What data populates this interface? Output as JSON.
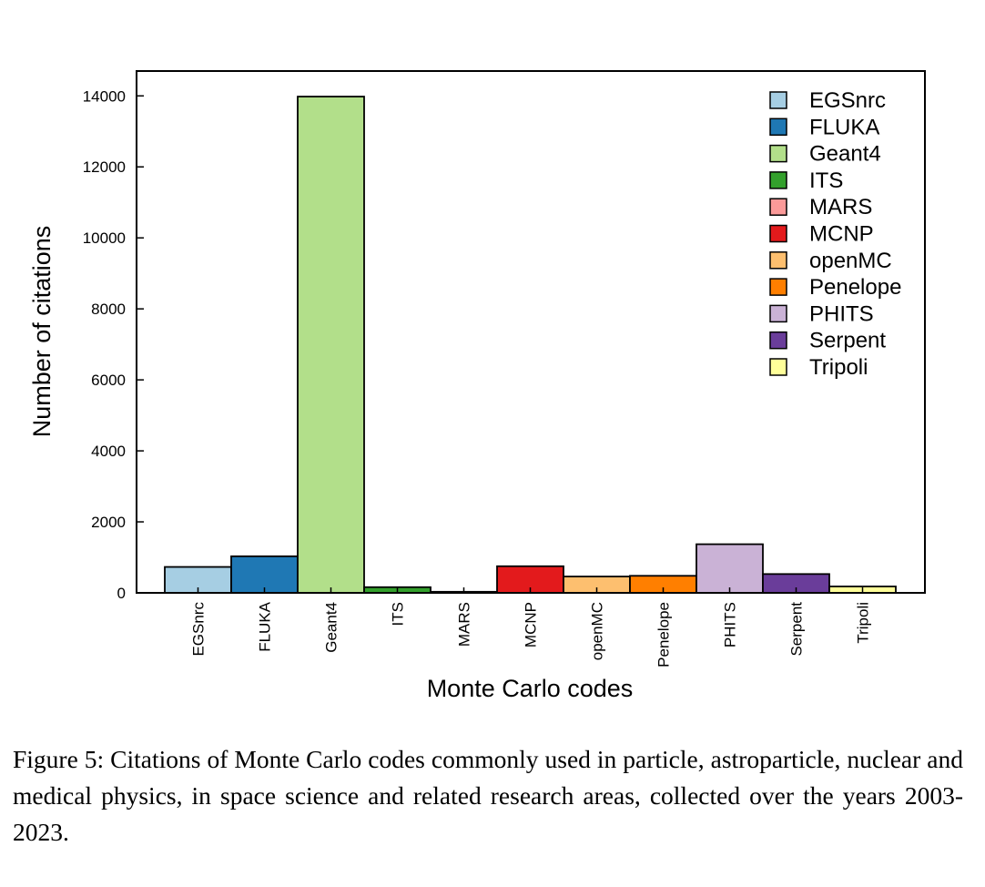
{
  "chart_data": {
    "type": "bar",
    "categories": [
      "EGSnrc",
      "FLUKA",
      "Geant4",
      "ITS",
      "MARS",
      "MCNP",
      "openMC",
      "Penelope",
      "PHITS",
      "Serpent",
      "Tripoli"
    ],
    "values": [
      730,
      1030,
      13980,
      160,
      30,
      750,
      460,
      480,
      1370,
      530,
      180
    ],
    "colors": [
      "#a6cee3",
      "#1f78b4",
      "#b2df8a",
      "#33a02c",
      "#fb9a99",
      "#e31a1c",
      "#fdbf6f",
      "#ff7f00",
      "#cab2d6",
      "#6a3d9a",
      "#ffff99"
    ],
    "xlabel": "Monte Carlo codes",
    "ylabel": "Number of citations",
    "ylim": [
      0,
      14700
    ],
    "yticks": [
      0,
      2000,
      4000,
      6000,
      8000,
      10000,
      12000,
      14000
    ],
    "legend": {
      "placement": "top-right",
      "entries": [
        "EGSnrc",
        "FLUKA",
        "Geant4",
        "ITS",
        "MARS",
        "MCNP",
        "openMC",
        "Penelope",
        "PHITS",
        "Serpent",
        "Tripoli"
      ]
    },
    "grid": false
  },
  "caption": "Figure 5: Citations of Monte Carlo codes commonly used in particle, astroparticle, nuclear and medical physics, in space science and related research areas, collected over the years 2003-2023."
}
